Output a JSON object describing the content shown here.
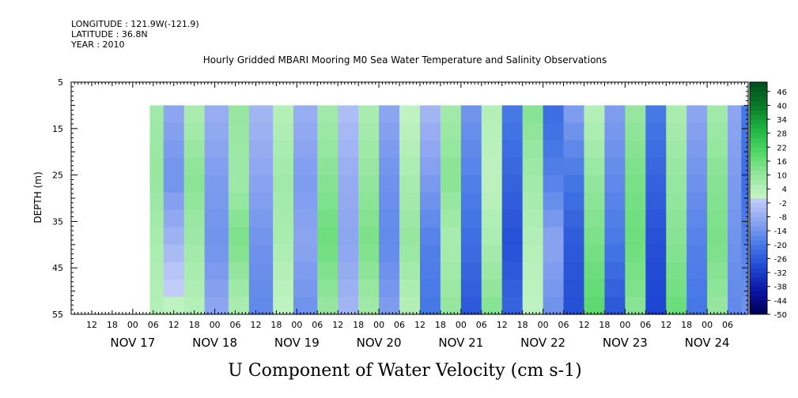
{
  "header": {
    "longitude": "LONGITUDE : 121.9W(-121.9)",
    "latitude": "LATITUDE : 36.8N",
    "year": "YEAR : 2010"
  },
  "chart_data": {
    "type": "heatmap",
    "title": "Hourly Gridded MBARI Mooring M0 Sea Water Temperature and Salinity Observations",
    "xlabel": "U Component of Water Velocity (cm s-1)",
    "ylabel": "DEPTH (m)",
    "ylim": [
      5,
      55
    ],
    "y_ticks": [
      5,
      15,
      25,
      35,
      45,
      55
    ],
    "x_hour_labels": [
      "12",
      "18",
      "00",
      "06",
      "12",
      "18",
      "00",
      "06",
      "12",
      "18",
      "00",
      "06",
      "12",
      "18",
      "00",
      "06",
      "12",
      "18",
      "00",
      "06",
      "12",
      "18",
      "00",
      "06",
      "12",
      "18",
      "00",
      "06",
      "12",
      "18",
      "00",
      "06"
    ],
    "x_day_labels": [
      "NOV 17",
      "NOV 18",
      "NOV 19",
      "NOV 20",
      "NOV 21",
      "NOV 22",
      "NOV 23",
      "NOV 24"
    ],
    "x_range": [
      "2010-11-16T06:00",
      "2010-11-24T12:00"
    ],
    "data_range": [
      "2010-11-17T00:00",
      "2010-11-24T12:00"
    ],
    "data_depth_range": [
      10,
      55
    ],
    "grid": false,
    "colorbar": {
      "ticks": [
        46,
        40,
        34,
        28,
        22,
        16,
        10,
        4,
        -2,
        -8,
        -14,
        -20,
        -26,
        -32,
        -38,
        -44,
        -50
      ],
      "range": [
        -50,
        50
      ],
      "colors_low": [
        "#000050",
        "#0a14a0",
        "#1e46d2",
        "#4678e6",
        "#8ca5f0",
        "#c3cdf8"
      ],
      "colors_high": [
        "#c8f5c8",
        "#96e6a0",
        "#50d764",
        "#1eb441",
        "#0a7828",
        "#00501e"
      ]
    },
    "values": [
      [
        5,
        [
          8,
          10,
          6,
          4
        ]
      ],
      [
        9,
        [
          -10,
          -14,
          -6,
          2
        ]
      ],
      [
        15,
        [
          6,
          12,
          8,
          4
        ]
      ],
      [
        21,
        [
          -8,
          -12,
          -14,
          -10
        ]
      ],
      [
        28,
        [
          10,
          8,
          14,
          6
        ]
      ],
      [
        34,
        [
          -6,
          -10,
          -14,
          -16
        ]
      ],
      [
        41,
        [
          4,
          8,
          6,
          2
        ]
      ],
      [
        47,
        [
          -8,
          -12,
          -10,
          -14
        ]
      ],
      [
        54,
        [
          8,
          12,
          16,
          10
        ]
      ],
      [
        60,
        [
          -4,
          -8,
          -10,
          -6
        ]
      ],
      [
        66,
        [
          6,
          10,
          14,
          8
        ]
      ],
      [
        72,
        [
          -10,
          -14,
          -16,
          -12
        ]
      ],
      [
        78,
        [
          2,
          6,
          10,
          4
        ]
      ],
      [
        84,
        [
          -6,
          -12,
          -18,
          -20
        ]
      ],
      [
        90,
        [
          8,
          12,
          6,
          10
        ]
      ],
      [
        96,
        [
          -14,
          -18,
          -22,
          -26
        ]
      ],
      [
        102,
        [
          4,
          2,
          6,
          12
        ]
      ],
      [
        108,
        [
          -20,
          -24,
          -28,
          -24
        ]
      ],
      [
        114,
        [
          12,
          8,
          4,
          2
        ]
      ],
      [
        120,
        [
          -22,
          -18,
          -10,
          -14
        ]
      ],
      [
        126,
        [
          -12,
          -20,
          -26,
          -28
        ]
      ],
      [
        132,
        [
          4,
          10,
          14,
          18
        ]
      ],
      [
        138,
        [
          -12,
          -16,
          -20,
          -26
        ]
      ],
      [
        144,
        [
          10,
          14,
          16,
          12
        ]
      ],
      [
        150,
        [
          -20,
          -24,
          -28,
          -30
        ]
      ],
      [
        156,
        [
          6,
          10,
          12,
          16
        ]
      ],
      [
        162,
        [
          -10,
          -14,
          -18,
          -20
        ]
      ],
      [
        168,
        [
          8,
          12,
          14,
          10
        ]
      ],
      [
        174,
        [
          -10,
          -12,
          -14,
          -16
        ]
      ],
      [
        178,
        [
          -20,
          -22,
          -18,
          -14
        ]
      ]
    ]
  }
}
